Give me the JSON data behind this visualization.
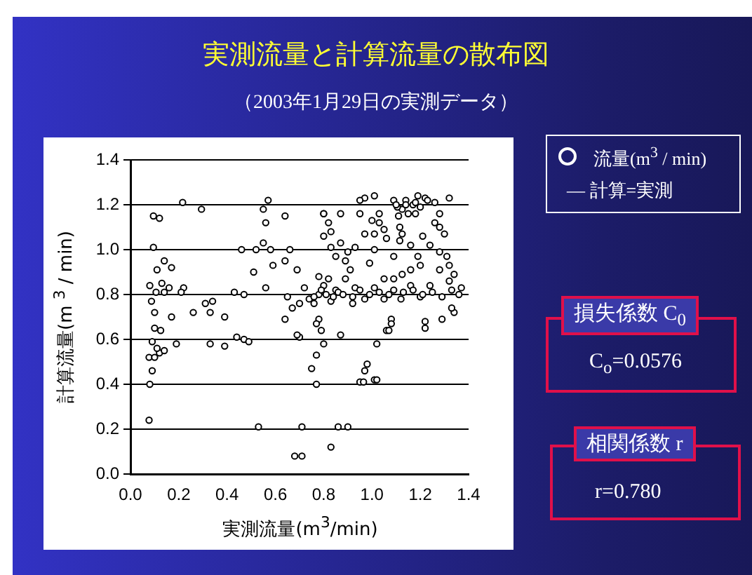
{
  "chart_data": {
    "type": "scatter",
    "title": "実測流量と計算流量の散布図",
    "subtitle": "（2003年1月29日の実測データ）",
    "xlabel": "実測流量(m$^{3}$/min)",
    "ylabel": "計算流量(m $^{3}$ / min)",
    "series": [
      {
        "name": "流量(m$^{3}$ / min)",
        "color": "#000000",
        "x": [
          0.216,
          0.294,
          0.095,
          0.12,
          0.095,
          0.14,
          0.11,
          0.17,
          0.08,
          0.13,
          0.106,
          0.14,
          0.16,
          0.22,
          0.21,
          0.087,
          0.17,
          0.1,
          0.1,
          0.125,
          0.31,
          0.34,
          0.33,
          0.39,
          0.26,
          0.43,
          0.47,
          0.51,
          0.46,
          0.52,
          0.55,
          0.58,
          0.66,
          0.59,
          0.64,
          0.56,
          0.65,
          0.69,
          0.55,
          0.57,
          0.56,
          0.64,
          0.64,
          0.33,
          0.44,
          0.47,
          0.49,
          0.78,
          0.74,
          0.76,
          0.8,
          0.82,
          0.78,
          0.67,
          0.7,
          0.72,
          0.85,
          0.93,
          1.01,
          1.09,
          1.16,
          1.24,
          1.32,
          1.37,
          1.36,
          0.83,
          0.97,
          1.05,
          1.12,
          1.2,
          0.9,
          0.89,
          0.91,
          0.89,
          0.87,
          0.93,
          0.85,
          0.83,
          0.8,
          0.87,
          0.95,
          1.03,
          1.11,
          1.18,
          1.26,
          1.28,
          0.97,
          1.01,
          0.95,
          1.09,
          1.14,
          1.19,
          1.22,
          1.17,
          1.125,
          1.15,
          1.105,
          1.32,
          1.26,
          1.115,
          1.125,
          1.115,
          1.06,
          1.05,
          1.03,
          1.01,
          1.24,
          1.28,
          1.31,
          1.32,
          1.34,
          1.28,
          1.3,
          1.28,
          1.21,
          1.16,
          1.2,
          1.16,
          1.125,
          1.09,
          1.05,
          1.19,
          1.09,
          0.99,
          0.97,
          1.01,
          0.83,
          0.8,
          0.82,
          0.8,
          1.34,
          1.33,
          1.29,
          1.22,
          1.22,
          1.08,
          1.08,
          1.06,
          0.92,
          0.78,
          0.77,
          0.79,
          0.87,
          0.7,
          0.8,
          1.02,
          0.08,
          0.077,
          0.09,
          0.077,
          0.1,
          0.12,
          0.14,
          0.09,
          0.11,
          0.19,
          0.39,
          0.53,
          0.71,
          0.86,
          0.9,
          0.83,
          0.68,
          0.71,
          0.75,
          0.77,
          0.77,
          0.69,
          0.95,
          0.965,
          0.97,
          0.98,
          1.01,
          1.02,
          1.07,
          0.76,
          0.79,
          0.81,
          0.84,
          0.86,
          0.88,
          0.92,
          0.95,
          0.99,
          1.03,
          1.07,
          1.13,
          1.17,
          1.21,
          1.25,
          1.29,
          1.33,
          1.14,
          1.18,
          1.2,
          1.23,
          1.1,
          1.0
        ],
        "values": [
          1.21,
          1.18,
          1.15,
          1.14,
          1.01,
          0.95,
          0.91,
          0.92,
          0.84,
          0.85,
          0.81,
          0.81,
          0.83,
          0.83,
          0.81,
          0.77,
          0.7,
          0.72,
          0.65,
          0.64,
          0.76,
          0.77,
          0.72,
          0.7,
          0.72,
          0.81,
          0.8,
          0.9,
          1.0,
          1.0,
          1.03,
          1.0,
          1.0,
          0.93,
          0.95,
          0.83,
          0.79,
          0.91,
          1.18,
          1.22,
          1.12,
          1.15,
          0.69,
          0.58,
          0.61,
          0.6,
          0.59,
          0.8,
          0.78,
          0.76,
          0.84,
          0.87,
          0.88,
          0.74,
          0.76,
          0.83,
          0.82,
          0.83,
          0.83,
          0.82,
          0.84,
          0.84,
          0.86,
          0.83,
          0.8,
          0.77,
          0.78,
          0.78,
          0.78,
          0.79,
          0.99,
          0.95,
          0.91,
          0.87,
          1.03,
          1.01,
          0.97,
          1.01,
          1.16,
          1.16,
          1.16,
          1.16,
          1.15,
          1.16,
          1.12,
          1.16,
          1.23,
          1.24,
          1.22,
          1.22,
          1.22,
          1.24,
          1.23,
          1.2,
          1.18,
          1.16,
          1.19,
          1.23,
          1.21,
          1.1,
          1.07,
          1.04,
          1.05,
          1.09,
          1.12,
          1.07,
          1.02,
          0.99,
          0.97,
          0.93,
          0.89,
          0.91,
          1.07,
          1.1,
          1.06,
          1.02,
          0.93,
          0.91,
          0.89,
          0.87,
          0.87,
          0.97,
          0.97,
          0.94,
          1.07,
          1.0,
          1.08,
          1.06,
          1.12,
          1.16,
          0.72,
          0.74,
          0.69,
          0.68,
          0.65,
          0.69,
          0.67,
          0.64,
          0.76,
          0.69,
          0.67,
          0.64,
          0.62,
          0.61,
          0.58,
          0.58,
          0.4,
          0.24,
          0.46,
          0.52,
          0.52,
          0.54,
          0.55,
          0.59,
          0.56,
          0.58,
          0.57,
          0.21,
          0.21,
          0.21,
          0.21,
          0.12,
          0.08,
          0.08,
          0.47,
          0.4,
          0.53,
          0.62,
          0.41,
          0.41,
          0.46,
          0.49,
          0.42,
          0.42,
          0.64,
          0.79,
          0.82,
          0.8,
          0.79,
          0.81,
          0.8,
          0.79,
          0.82,
          0.8,
          0.81,
          0.8,
          0.81,
          0.82,
          0.8,
          0.81,
          0.79,
          0.82,
          1.2,
          1.21,
          1.19,
          1.22,
          1.2,
          1.13
        ]
      }
    ],
    "xlim": [
      0,
      1.4
    ],
    "ylim": [
      0,
      1.4
    ],
    "xticks": [
      {
        "value": 0,
        "label": "0.0"
      },
      {
        "value": 0.2,
        "label": "0.2"
      },
      {
        "value": 0.4,
        "label": "0.4"
      },
      {
        "value": 0.6,
        "label": "0.6"
      },
      {
        "value": 0.8,
        "label": "0.8"
      },
      {
        "value": 1,
        "label": "1.0"
      },
      {
        "value": 1.2,
        "label": "1.2"
      },
      {
        "value": 1.4,
        "label": "1.4"
      }
    ],
    "yticks": [
      {
        "value": 0,
        "label": "0.0"
      },
      {
        "value": 0.2,
        "label": "0.2"
      },
      {
        "value": 0.4,
        "label": "0.4"
      },
      {
        "value": 0.6,
        "label": "0.6"
      },
      {
        "value": 0.8,
        "label": "0.8"
      },
      {
        "value": 1,
        "label": "1.0"
      },
      {
        "value": 1.2,
        "label": "1.2"
      },
      {
        "value": 1.4,
        "label": "1.4"
      }
    ],
    "grid": "y",
    "marker": "circle",
    "legend": "right",
    "annotations": [
      "— 計算=実測",
      "損失係数 C$_{0}$",
      "C$_{o}$=0.0576",
      "相関係数 r",
      "r=0.780"
    ]
  }
}
